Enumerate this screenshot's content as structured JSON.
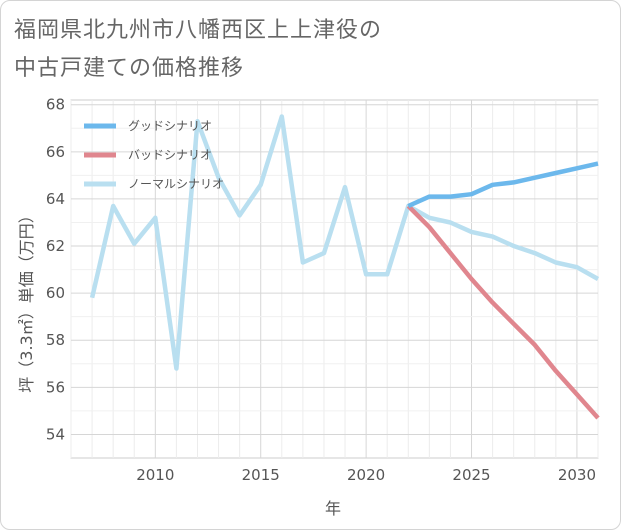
{
  "title_line1": "福岡県北九州市八幡西区上上津役の",
  "title_line2": "中古戸建ての価格推移",
  "chart_data": {
    "type": "line",
    "xlabel": "年",
    "ylabel": "坪（3.3㎡）単価（万円）",
    "xlim": [
      2006,
      2031
    ],
    "ylim": [
      53,
      68.2
    ],
    "xticks": [
      2010,
      2015,
      2020,
      2025,
      2030
    ],
    "yticks": [
      54,
      56,
      58,
      60,
      62,
      64,
      66,
      68
    ],
    "legend_position": "top-left",
    "series": [
      {
        "name": "グッドシナリオ",
        "color": "#6cb8ec",
        "x": [
          2022,
          2023,
          2024,
          2025,
          2026,
          2027,
          2028,
          2029,
          2030,
          2031
        ],
        "values": [
          63.7,
          64.1,
          64.1,
          64.2,
          64.6,
          64.7,
          64.9,
          65.1,
          65.3,
          65.5
        ]
      },
      {
        "name": "バッドシナリオ",
        "color": "#e0868e",
        "x": [
          2022,
          2023,
          2024,
          2025,
          2026,
          2027,
          2028,
          2029,
          2030,
          2031
        ],
        "values": [
          63.7,
          62.8,
          61.7,
          60.6,
          59.6,
          58.7,
          57.8,
          56.7,
          55.7,
          54.7
        ]
      },
      {
        "name": "ノーマルシナリオ",
        "color": "#b9dff0",
        "x": [
          2007,
          2008,
          2009,
          2010,
          2011,
          2012,
          2013,
          2014,
          2015,
          2016,
          2017,
          2018,
          2019,
          2020,
          2021,
          2022,
          2023,
          2024,
          2025,
          2026,
          2027,
          2028,
          2029,
          2030,
          2031
        ],
        "values": [
          59.8,
          63.7,
          62.1,
          63.2,
          56.8,
          67.3,
          64.9,
          63.3,
          64.6,
          67.5,
          61.3,
          61.7,
          64.5,
          60.8,
          60.8,
          63.7,
          63.2,
          63.0,
          62.6,
          62.4,
          62.0,
          61.7,
          61.3,
          61.1,
          60.6
        ]
      }
    ]
  }
}
